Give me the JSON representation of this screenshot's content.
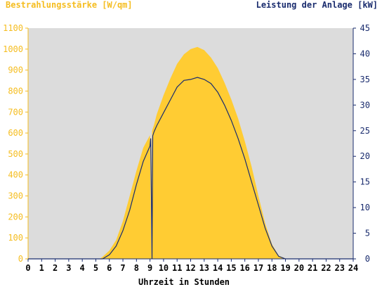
{
  "chart_data": {
    "type": "area",
    "left_axis_title": "Bestrahlungsstärke [W/qm]",
    "right_axis_title": "Leistung der Anlage [kW]",
    "xlabel": "Uhrzeit in Stunden",
    "xlim": [
      0,
      24
    ],
    "x_ticks": [
      "0",
      "1",
      "2",
      "3",
      "4",
      "5",
      "6",
      "7",
      "8",
      "9",
      "10",
      "11",
      "12",
      "13",
      "14",
      "15",
      "16",
      "17",
      "18",
      "19",
      "20",
      "21",
      "22",
      "23",
      "24"
    ],
    "ylim_left": [
      0,
      1100
    ],
    "y_ticks_left": [
      "0",
      "100",
      "200",
      "300",
      "400",
      "500",
      "600",
      "700",
      "800",
      "900",
      "1000",
      "1100"
    ],
    "ylim_right": [
      0,
      45
    ],
    "y_ticks_right": [
      "0",
      "5",
      "10",
      "15",
      "20",
      "25",
      "30",
      "35",
      "40",
      "45"
    ],
    "grid": false,
    "colors": {
      "irradiance_fill": "#ffcc33",
      "left_axis": "#f5bd20",
      "right_axis": "#1a2c6e",
      "power_line": "#1a2c6e",
      "plot_background": "#dcdcdc"
    },
    "series": [
      {
        "axis": "left",
        "kind": "area",
        "x": [
          0,
          5.3,
          5.5,
          6.0,
          6.5,
          7.0,
          7.5,
          8.0,
          8.5,
          9.0,
          9.1,
          9.15,
          9.3,
          9.5,
          10.0,
          10.5,
          11.0,
          11.5,
          12.0,
          12.5,
          13.0,
          13.5,
          14.0,
          14.5,
          15.0,
          15.5,
          16.0,
          16.5,
          17.0,
          17.5,
          18.0,
          18.5,
          19.0,
          19.5,
          24
        ],
        "y": [
          0,
          0,
          10,
          40,
          90,
          180,
          300,
          420,
          530,
          590,
          0,
          610,
          640,
          690,
          780,
          860,
          930,
          975,
          1000,
          1010,
          995,
          960,
          910,
          840,
          760,
          670,
          560,
          440,
          300,
          170,
          70,
          15,
          2,
          0,
          0
        ]
      },
      {
        "axis": "right",
        "kind": "line",
        "x": [
          0,
          5.5,
          6.0,
          6.5,
          7.0,
          7.5,
          8.0,
          8.5,
          9.0,
          9.05,
          9.1,
          9.15,
          9.2,
          9.3,
          9.5,
          10.0,
          10.5,
          11.0,
          11.5,
          12.0,
          12.5,
          13.0,
          13.5,
          14.0,
          14.5,
          15.0,
          15.5,
          16.0,
          16.5,
          17.0,
          17.5,
          18.0,
          18.5,
          19.0,
          19.5,
          24
        ],
        "y": [
          0,
          0,
          0.8,
          2.5,
          5.5,
          9.5,
          14.5,
          19.0,
          22.0,
          23.5,
          12.0,
          0,
          24.0,
          24.8,
          26.0,
          28.5,
          31.0,
          33.5,
          34.8,
          35.0,
          35.4,
          35.0,
          34.2,
          32.5,
          30.0,
          27.0,
          23.5,
          19.5,
          15.0,
          10.5,
          6.0,
          2.5,
          0.5,
          0,
          0,
          0
        ]
      }
    ]
  }
}
